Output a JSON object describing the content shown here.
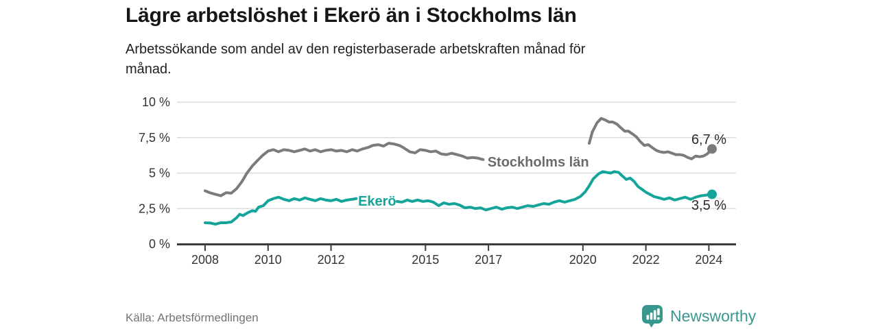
{
  "header": {
    "title": "Lägre arbetslöshet i Ekerö än i Stockholms län",
    "subtitle_line1": "Arbetssökande som andel av den registerbaserade arbetskraften månad för",
    "subtitle_line2": "månad."
  },
  "footer": {
    "source": "Källa: Arbetsförmedlingen",
    "brand": "Newsworthy",
    "brand_color": "#38988f"
  },
  "chart_data": {
    "type": "line",
    "unit": "%",
    "decimal_style": "comma",
    "grid": "horizontal-only",
    "xlim": [
      2007.1,
      2024.9
    ],
    "ylim": [
      0,
      10
    ],
    "x_ticks": [
      "2008",
      "2010",
      "2012",
      "2015",
      "2017",
      "2020",
      "2022",
      "2024"
    ],
    "x_tick_years": [
      2008,
      2010,
      2012,
      2015,
      2017,
      2020,
      2022,
      2024
    ],
    "y_ticks": [
      {
        "value": 0,
        "label": "0 %"
      },
      {
        "value": 2.5,
        "label": "2,5 %"
      },
      {
        "value": 5,
        "label": "5 %"
      },
      {
        "value": 7.5,
        "label": "7,5 %"
      },
      {
        "value": 10,
        "label": "10 %"
      }
    ],
    "series": [
      {
        "name": "Stockholms län",
        "color": "#7b7b7b",
        "label_color": "#6b6b6b",
        "end_value": 6.7,
        "value_label": {
          "text": "6,7 %",
          "year": 2024.56,
          "value": 7.06
        },
        "inline_label": {
          "text": "Stockholms län",
          "year": 2016.97,
          "value": 5.46
        },
        "segments": [
          [
            [
              2008.0,
              3.75
            ],
            [
              2008.17,
              3.6
            ],
            [
              2008.33,
              3.5
            ],
            [
              2008.5,
              3.4
            ],
            [
              2008.67,
              3.62
            ],
            [
              2008.83,
              3.58
            ],
            [
              2009.0,
              3.9
            ],
            [
              2009.17,
              4.4
            ],
            [
              2009.33,
              5.0
            ],
            [
              2009.5,
              5.5
            ],
            [
              2009.67,
              5.9
            ],
            [
              2009.83,
              6.25
            ],
            [
              2010.0,
              6.55
            ],
            [
              2010.17,
              6.65
            ],
            [
              2010.33,
              6.5
            ],
            [
              2010.5,
              6.65
            ],
            [
              2010.67,
              6.6
            ],
            [
              2010.83,
              6.5
            ],
            [
              2011.0,
              6.6
            ],
            [
              2011.17,
              6.7
            ],
            [
              2011.33,
              6.55
            ],
            [
              2011.5,
              6.65
            ],
            [
              2011.67,
              6.5
            ],
            [
              2011.83,
              6.6
            ],
            [
              2012.0,
              6.65
            ],
            [
              2012.17,
              6.55
            ],
            [
              2012.33,
              6.6
            ],
            [
              2012.5,
              6.5
            ],
            [
              2012.67,
              6.65
            ],
            [
              2012.83,
              6.55
            ],
            [
              2013.0,
              6.7
            ],
            [
              2013.17,
              6.8
            ],
            [
              2013.33,
              6.95
            ],
            [
              2013.5,
              7.0
            ],
            [
              2013.67,
              6.9
            ],
            [
              2013.83,
              7.1
            ],
            [
              2014.0,
              7.05
            ],
            [
              2014.17,
              6.95
            ],
            [
              2014.33,
              6.75
            ],
            [
              2014.5,
              6.5
            ],
            [
              2014.67,
              6.42
            ],
            [
              2014.83,
              6.65
            ],
            [
              2015.0,
              6.6
            ],
            [
              2015.17,
              6.5
            ],
            [
              2015.33,
              6.55
            ],
            [
              2015.5,
              6.35
            ],
            [
              2015.67,
              6.3
            ],
            [
              2015.83,
              6.4
            ],
            [
              2016.0,
              6.3
            ],
            [
              2016.17,
              6.2
            ],
            [
              2016.33,
              6.05
            ],
            [
              2016.5,
              6.1
            ],
            [
              2016.67,
              6.05
            ],
            [
              2016.83,
              5.95
            ]
          ],
          [
            [
              2020.2,
              7.1
            ],
            [
              2020.3,
              7.9
            ],
            [
              2020.45,
              8.55
            ],
            [
              2020.58,
              8.85
            ],
            [
              2020.7,
              8.75
            ],
            [
              2020.83,
              8.6
            ],
            [
              2020.95,
              8.6
            ],
            [
              2021.08,
              8.45
            ],
            [
              2021.2,
              8.2
            ],
            [
              2021.33,
              7.95
            ],
            [
              2021.45,
              7.95
            ],
            [
              2021.58,
              7.75
            ],
            [
              2021.7,
              7.55
            ],
            [
              2021.83,
              7.2
            ],
            [
              2021.95,
              6.95
            ],
            [
              2022.08,
              7.0
            ],
            [
              2022.2,
              6.8
            ],
            [
              2022.33,
              6.6
            ],
            [
              2022.45,
              6.5
            ],
            [
              2022.58,
              6.45
            ],
            [
              2022.7,
              6.5
            ],
            [
              2022.83,
              6.4
            ],
            [
              2022.95,
              6.3
            ],
            [
              2023.08,
              6.3
            ],
            [
              2023.2,
              6.25
            ],
            [
              2023.33,
              6.1
            ],
            [
              2023.45,
              6.0
            ],
            [
              2023.58,
              6.2
            ],
            [
              2023.7,
              6.15
            ],
            [
              2023.83,
              6.2
            ],
            [
              2023.95,
              6.35
            ],
            [
              2024.1,
              6.7
            ]
          ]
        ]
      },
      {
        "name": "Ekerö",
        "color": "#14a499",
        "label_color": "#14a499",
        "end_value": 3.5,
        "value_label": {
          "text": "3,5 %",
          "year": 2024.56,
          "value": 2.42
        },
        "inline_label": {
          "text": "Ekerö",
          "year": 2012.86,
          "value": 2.71
        },
        "segments": [
          [
            [
              2008.0,
              1.5
            ],
            [
              2008.17,
              1.48
            ],
            [
              2008.33,
              1.4
            ],
            [
              2008.5,
              1.5
            ],
            [
              2008.67,
              1.5
            ],
            [
              2008.83,
              1.55
            ],
            [
              2009.0,
              1.85
            ],
            [
              2009.1,
              2.1
            ],
            [
              2009.2,
              2.0
            ],
            [
              2009.35,
              2.2
            ],
            [
              2009.5,
              2.35
            ],
            [
              2009.6,
              2.3
            ],
            [
              2009.7,
              2.6
            ],
            [
              2009.85,
              2.7
            ],
            [
              2010.0,
              3.05
            ],
            [
              2010.17,
              3.2
            ],
            [
              2010.33,
              3.3
            ],
            [
              2010.5,
              3.15
            ],
            [
              2010.67,
              3.05
            ],
            [
              2010.83,
              3.2
            ],
            [
              2011.0,
              3.1
            ],
            [
              2011.17,
              3.25
            ],
            [
              2011.33,
              3.15
            ],
            [
              2011.5,
              3.05
            ],
            [
              2011.67,
              3.2
            ],
            [
              2011.83,
              3.1
            ],
            [
              2012.0,
              3.05
            ],
            [
              2012.17,
              3.15
            ],
            [
              2012.33,
              3.0
            ],
            [
              2012.5,
              3.1
            ],
            [
              2012.67,
              3.15
            ],
            [
              2012.8,
              3.2
            ]
          ],
          [
            [
              2014.1,
              3.0
            ],
            [
              2014.25,
              2.95
            ],
            [
              2014.42,
              3.1
            ],
            [
              2014.58,
              3.0
            ],
            [
              2014.75,
              3.1
            ],
            [
              2014.92,
              3.0
            ],
            [
              2015.08,
              3.05
            ],
            [
              2015.25,
              2.95
            ],
            [
              2015.42,
              2.7
            ],
            [
              2015.58,
              2.9
            ],
            [
              2015.75,
              2.8
            ],
            [
              2015.92,
              2.85
            ],
            [
              2016.08,
              2.75
            ],
            [
              2016.25,
              2.55
            ],
            [
              2016.42,
              2.6
            ],
            [
              2016.58,
              2.5
            ],
            [
              2016.75,
              2.55
            ],
            [
              2016.92,
              2.4
            ],
            [
              2017.08,
              2.5
            ],
            [
              2017.25,
              2.6
            ],
            [
              2017.42,
              2.45
            ],
            [
              2017.58,
              2.55
            ],
            [
              2017.75,
              2.6
            ],
            [
              2017.92,
              2.5
            ],
            [
              2018.08,
              2.6
            ],
            [
              2018.25,
              2.7
            ],
            [
              2018.42,
              2.65
            ],
            [
              2018.58,
              2.75
            ],
            [
              2018.75,
              2.85
            ],
            [
              2018.92,
              2.8
            ],
            [
              2019.08,
              2.95
            ],
            [
              2019.25,
              3.05
            ],
            [
              2019.42,
              2.95
            ],
            [
              2019.58,
              3.05
            ],
            [
              2019.75,
              3.15
            ],
            [
              2019.92,
              3.35
            ],
            [
              2020.08,
              3.7
            ],
            [
              2020.2,
              4.1
            ],
            [
              2020.33,
              4.6
            ],
            [
              2020.5,
              4.95
            ],
            [
              2020.63,
              5.1
            ],
            [
              2020.75,
              5.05
            ],
            [
              2020.88,
              5.0
            ],
            [
              2021.0,
              5.1
            ],
            [
              2021.13,
              5.05
            ],
            [
              2021.25,
              4.8
            ],
            [
              2021.38,
              4.55
            ],
            [
              2021.5,
              4.65
            ],
            [
              2021.63,
              4.4
            ],
            [
              2021.75,
              4.05
            ],
            [
              2021.88,
              3.85
            ],
            [
              2022.0,
              3.65
            ],
            [
              2022.13,
              3.5
            ],
            [
              2022.25,
              3.35
            ],
            [
              2022.42,
              3.25
            ],
            [
              2022.58,
              3.15
            ],
            [
              2022.75,
              3.25
            ],
            [
              2022.92,
              3.1
            ],
            [
              2023.08,
              3.2
            ],
            [
              2023.25,
              3.3
            ],
            [
              2023.42,
              3.15
            ],
            [
              2023.58,
              3.3
            ],
            [
              2023.75,
              3.4
            ],
            [
              2023.92,
              3.45
            ],
            [
              2024.1,
              3.5
            ]
          ]
        ]
      }
    ]
  }
}
